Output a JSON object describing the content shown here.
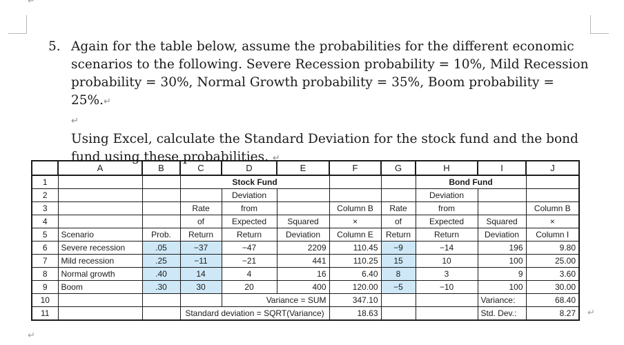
{
  "question": {
    "number": "5.",
    "paragraph1": "Again for the table below, assume the probabilities for the different economic scenarios to the following.  Severe Recession probability = 10%, Mild Recession probability = 30%, Normal Growth probability = 35%, Boom probability = 25%.",
    "paragraph2": "Using Excel, calculate the Standard Deviation for the stock fund and the bond fund using these probabilities."
  },
  "sheet": {
    "columns": [
      "A",
      "B",
      "C",
      "D",
      "E",
      "F",
      "G",
      "H",
      "I",
      "J"
    ],
    "rownums": [
      "1",
      "2",
      "3",
      "4",
      "5",
      "6",
      "7",
      "8",
      "9",
      "10",
      "11"
    ],
    "stock_fund": "Stock Fund",
    "bond_fund": "Bond Fund",
    "header": {
      "deviation": "Deviation",
      "rate": "Rate",
      "from": "from",
      "column_b": "Column B",
      "of": "of",
      "expected": "Expected",
      "squared": "Squared",
      "times": "×",
      "scenario": "Scenario",
      "prob": "Prob.",
      "return": "Return",
      "squared_deviation": "Deviation",
      "column_e": "Column E",
      "column_i": "Column I"
    },
    "rows": [
      {
        "scenario": "Severe recession",
        "prob": ".05",
        "s_rate": "−37",
        "s_dev": "−47",
        "s_sq": "2209",
        "s_prod": "110.45",
        "b_rate": "−9",
        "b_dev": "−14",
        "b_sq": "196",
        "b_prod": "9.80"
      },
      {
        "scenario": "Mild recession",
        "prob": ".25",
        "s_rate": "−11",
        "s_dev": "−21",
        "s_sq": "441",
        "s_prod": "110.25",
        "b_rate": "15",
        "b_dev": "10",
        "b_sq": "100",
        "b_prod": "25.00"
      },
      {
        "scenario": "Normal growth",
        "prob": ".40",
        "s_rate": "14",
        "s_dev": "4",
        "s_sq": "16",
        "s_prod": "6.40",
        "b_rate": "8",
        "b_dev": "3",
        "b_sq": "9",
        "b_prod": "3.60"
      },
      {
        "scenario": "Boom",
        "prob": ".30",
        "s_rate": "30",
        "s_dev": "20",
        "s_sq": "400",
        "s_prod": "120.00",
        "b_rate": "−5",
        "b_dev": "−10",
        "b_sq": "100",
        "b_prod": "30.00"
      }
    ],
    "variance_label": "Variance = SUM",
    "variance_value": "347.10",
    "bond_variance_label": "Variance:",
    "bond_variance_value": "68.40",
    "stdev_label": "Standard deviation = SQRT(Variance)",
    "stdev_value": "18.63",
    "bond_stdev_label": "Std. Dev.:",
    "bond_stdev_value": "8.27"
  },
  "marks": {
    "paragraph_mark": "↵"
  }
}
